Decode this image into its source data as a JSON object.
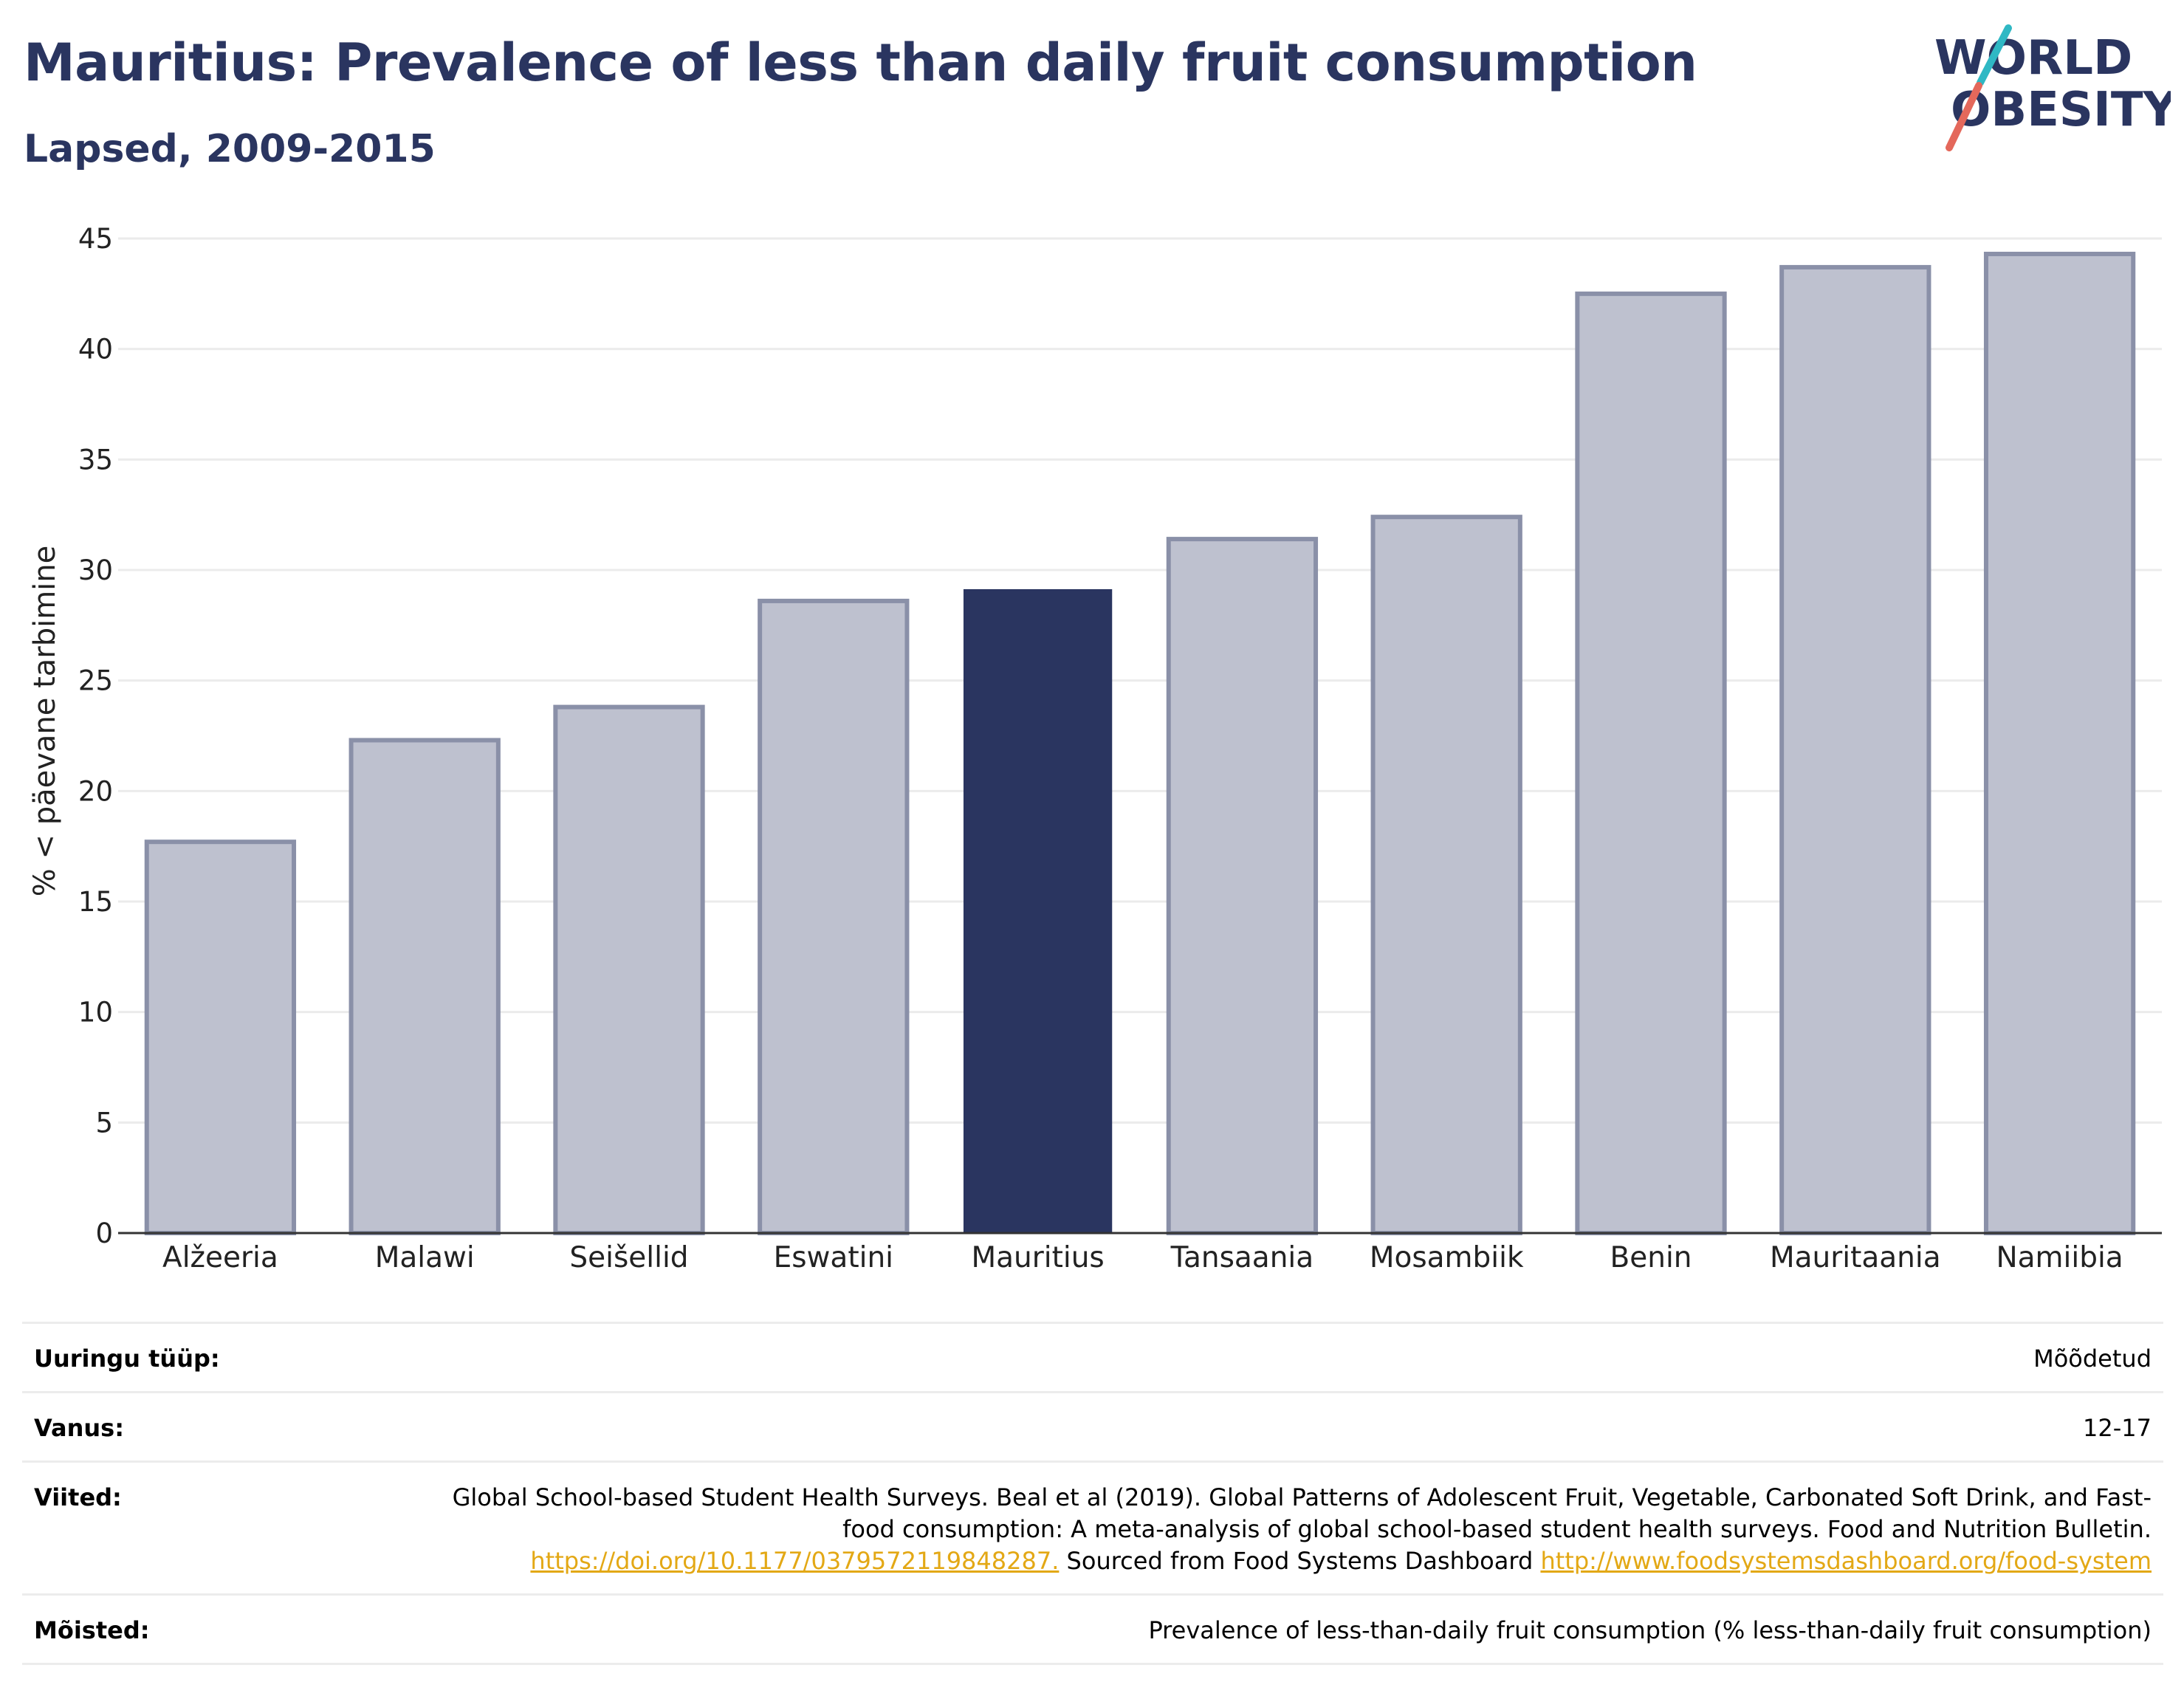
{
  "header": {
    "title": "Mauritius: Prevalence of less than daily fruit consumption",
    "subtitle": "Lapsed, 2009-2015"
  },
  "logo": {
    "line1": "WORLD",
    "line2": "OBESITY",
    "slash_colors": [
      "#2fb8c4",
      "#e4685b"
    ],
    "text_color": "#2a3560"
  },
  "colors": {
    "highlight": "#2a3560",
    "other_fill": "#bec1cf",
    "other_stroke": "#8a90a8",
    "grid": "#ebebeb",
    "axis": "#333333",
    "link": "#e3a815"
  },
  "chart_data": {
    "type": "bar",
    "title": "Mauritius: Prevalence of less than daily fruit consumption",
    "subtitle": "Lapsed, 2009-2015",
    "xlabel": "",
    "ylabel": "% < päevane tarbimine",
    "ylim": [
      0,
      45
    ],
    "yticks": [
      0,
      5,
      10,
      15,
      20,
      25,
      30,
      35,
      40,
      45
    ],
    "grid": true,
    "categories": [
      "Alžeeria",
      "Malawi",
      "Seišellid",
      "Eswatini",
      "Mauritius",
      "Tansaania",
      "Mosambiik",
      "Benin",
      "Mauritaania",
      "Namiibia"
    ],
    "values": [
      17.7,
      22.3,
      23.8,
      28.6,
      29.1,
      31.4,
      32.4,
      42.5,
      43.7,
      44.3
    ],
    "highlight": "Mauritius"
  },
  "meta": {
    "rows": [
      {
        "key": "Uuringu tüüp:",
        "value": "Mõõdetud"
      },
      {
        "key": "Vanus:",
        "value": "12-17"
      },
      {
        "key": "Viited:",
        "value_parts": [
          {
            "text": "Global School-based Student Health Surveys. Beal et al (2019). Global Patterns of Adolescent Fruit, Vegetable, Carbonated Soft Drink, and Fast-food consumption: A meta-analysis of global school-based student health surveys. Food and Nutrition Bulletin. "
          },
          {
            "text": "https://doi.org/10.1177/0379572119848287.",
            "link": true
          },
          {
            "text": " Sourced from Food Systems Dashboard "
          },
          {
            "text": "http://www.foodsystemsdashboard.org/food-system",
            "link": true
          }
        ]
      },
      {
        "key": "Mõisted:",
        "value": "Prevalence of less-than-daily fruit consumption (% less-than-daily fruit consumption)"
      }
    ]
  }
}
